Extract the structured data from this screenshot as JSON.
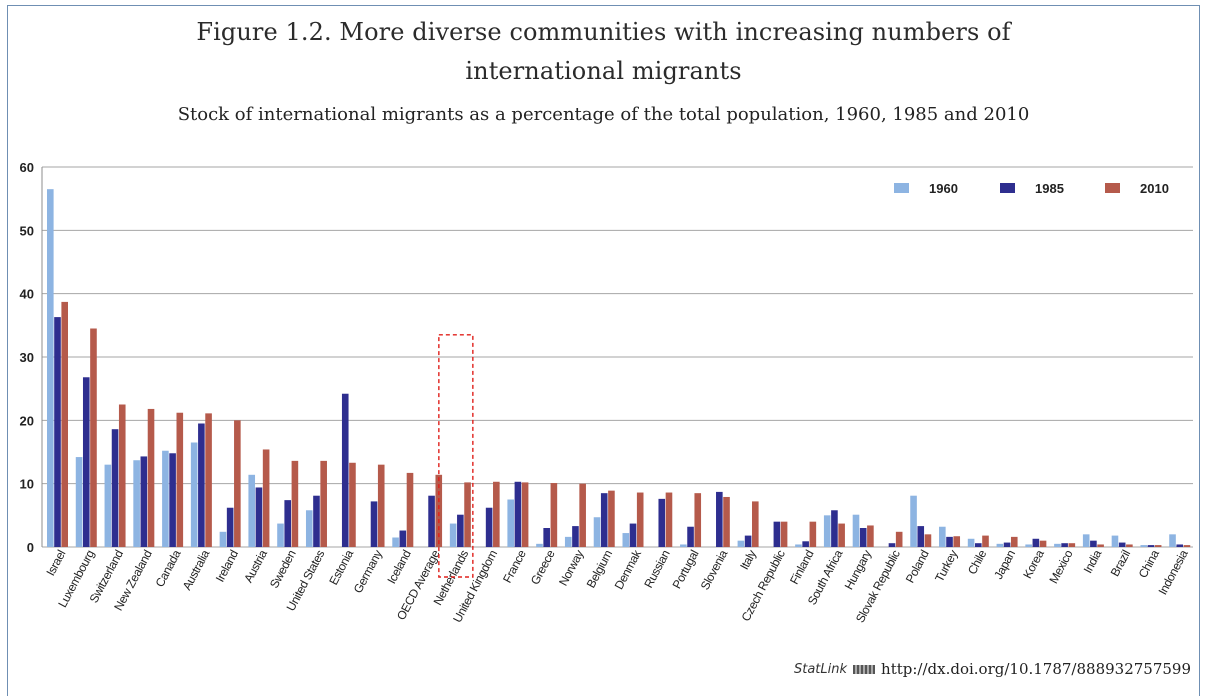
{
  "title_line1": "Figure 1.2. More diverse communities with increasing numbers of",
  "title_line2": "international migrants",
  "subtitle": "Stock of international migrants as a percentage of the total population, 1960, 1985 and 2010",
  "statlink": {
    "brand": "StatLink",
    "icon": "statlink-logo-icon",
    "url": "http://dx.doi.org/10.1787/888932757599"
  },
  "colors": {
    "s1960": "#8db4e2",
    "s1985": "#2e2e8f",
    "s2010": "#b55a4b",
    "highlight": "#e0201b"
  },
  "highlight_category": "Netherlands",
  "chart_data": {
    "type": "bar",
    "ylim": [
      0,
      60
    ],
    "yticks": [
      0,
      10,
      20,
      30,
      40,
      50,
      60
    ],
    "grid": true,
    "legend_position": "top-right",
    "categories": [
      "Israel",
      "Luxembourg",
      "Switzerland",
      "New Zealand",
      "Canada",
      "Australia",
      "Ireland",
      "Austria",
      "Sweden",
      "United States",
      "Estonia",
      "Germany",
      "Iceland",
      "OECD Average",
      "Netherlands",
      "United Kingdom",
      "France",
      "Greece",
      "Norway",
      "Belgium",
      "Denmak",
      "Russian",
      "Portugal",
      "Slovenia",
      "Italy",
      "Czech Republic",
      "Finland",
      "South Africa",
      "Hungary",
      "Slovak Republic",
      "Poland",
      "Turkey",
      "Chile",
      "Japan",
      "Korea",
      "Mexico",
      "India",
      "Brazil",
      "China",
      "Indonesia"
    ],
    "series": [
      {
        "name": "1960",
        "values": [
          56.5,
          14.2,
          13.0,
          13.7,
          15.2,
          16.5,
          2.4,
          11.4,
          3.7,
          5.8,
          0,
          0,
          1.5,
          0,
          3.7,
          0,
          7.5,
          0.5,
          1.6,
          4.7,
          2.2,
          0,
          0.4,
          0,
          1.0,
          0,
          0.4,
          5.0,
          5.1,
          0,
          8.1,
          3.2,
          1.3,
          0.5,
          0.4,
          0.5,
          2.0,
          1.8,
          0.3,
          2.0
        ]
      },
      {
        "name": "1985",
        "values": [
          36.3,
          26.8,
          18.6,
          14.3,
          14.8,
          19.5,
          6.2,
          9.4,
          7.4,
          8.1,
          24.2,
          7.2,
          2.6,
          8.1,
          5.1,
          6.2,
          10.3,
          3.0,
          3.3,
          8.5,
          3.7,
          7.6,
          3.2,
          8.7,
          1.8,
          4.0,
          0.9,
          5.8,
          3.0,
          0.6,
          3.3,
          1.6,
          0.6,
          0.7,
          1.3,
          0.6,
          1.0,
          0.7,
          0.3,
          0.4
        ]
      },
      {
        "name": "2010",
        "values": [
          38.7,
          34.5,
          22.5,
          21.8,
          21.2,
          21.1,
          20.0,
          15.4,
          13.6,
          13.6,
          13.3,
          13.0,
          11.7,
          11.4,
          10.2,
          10.3,
          10.2,
          10.1,
          10.0,
          8.9,
          8.6,
          8.6,
          8.5,
          7.9,
          7.2,
          4.0,
          4.0,
          3.7,
          3.4,
          2.4,
          2.0,
          1.7,
          1.8,
          1.6,
          1.0,
          0.6,
          0.4,
          0.4,
          0.3,
          0.3
        ]
      }
    ]
  }
}
